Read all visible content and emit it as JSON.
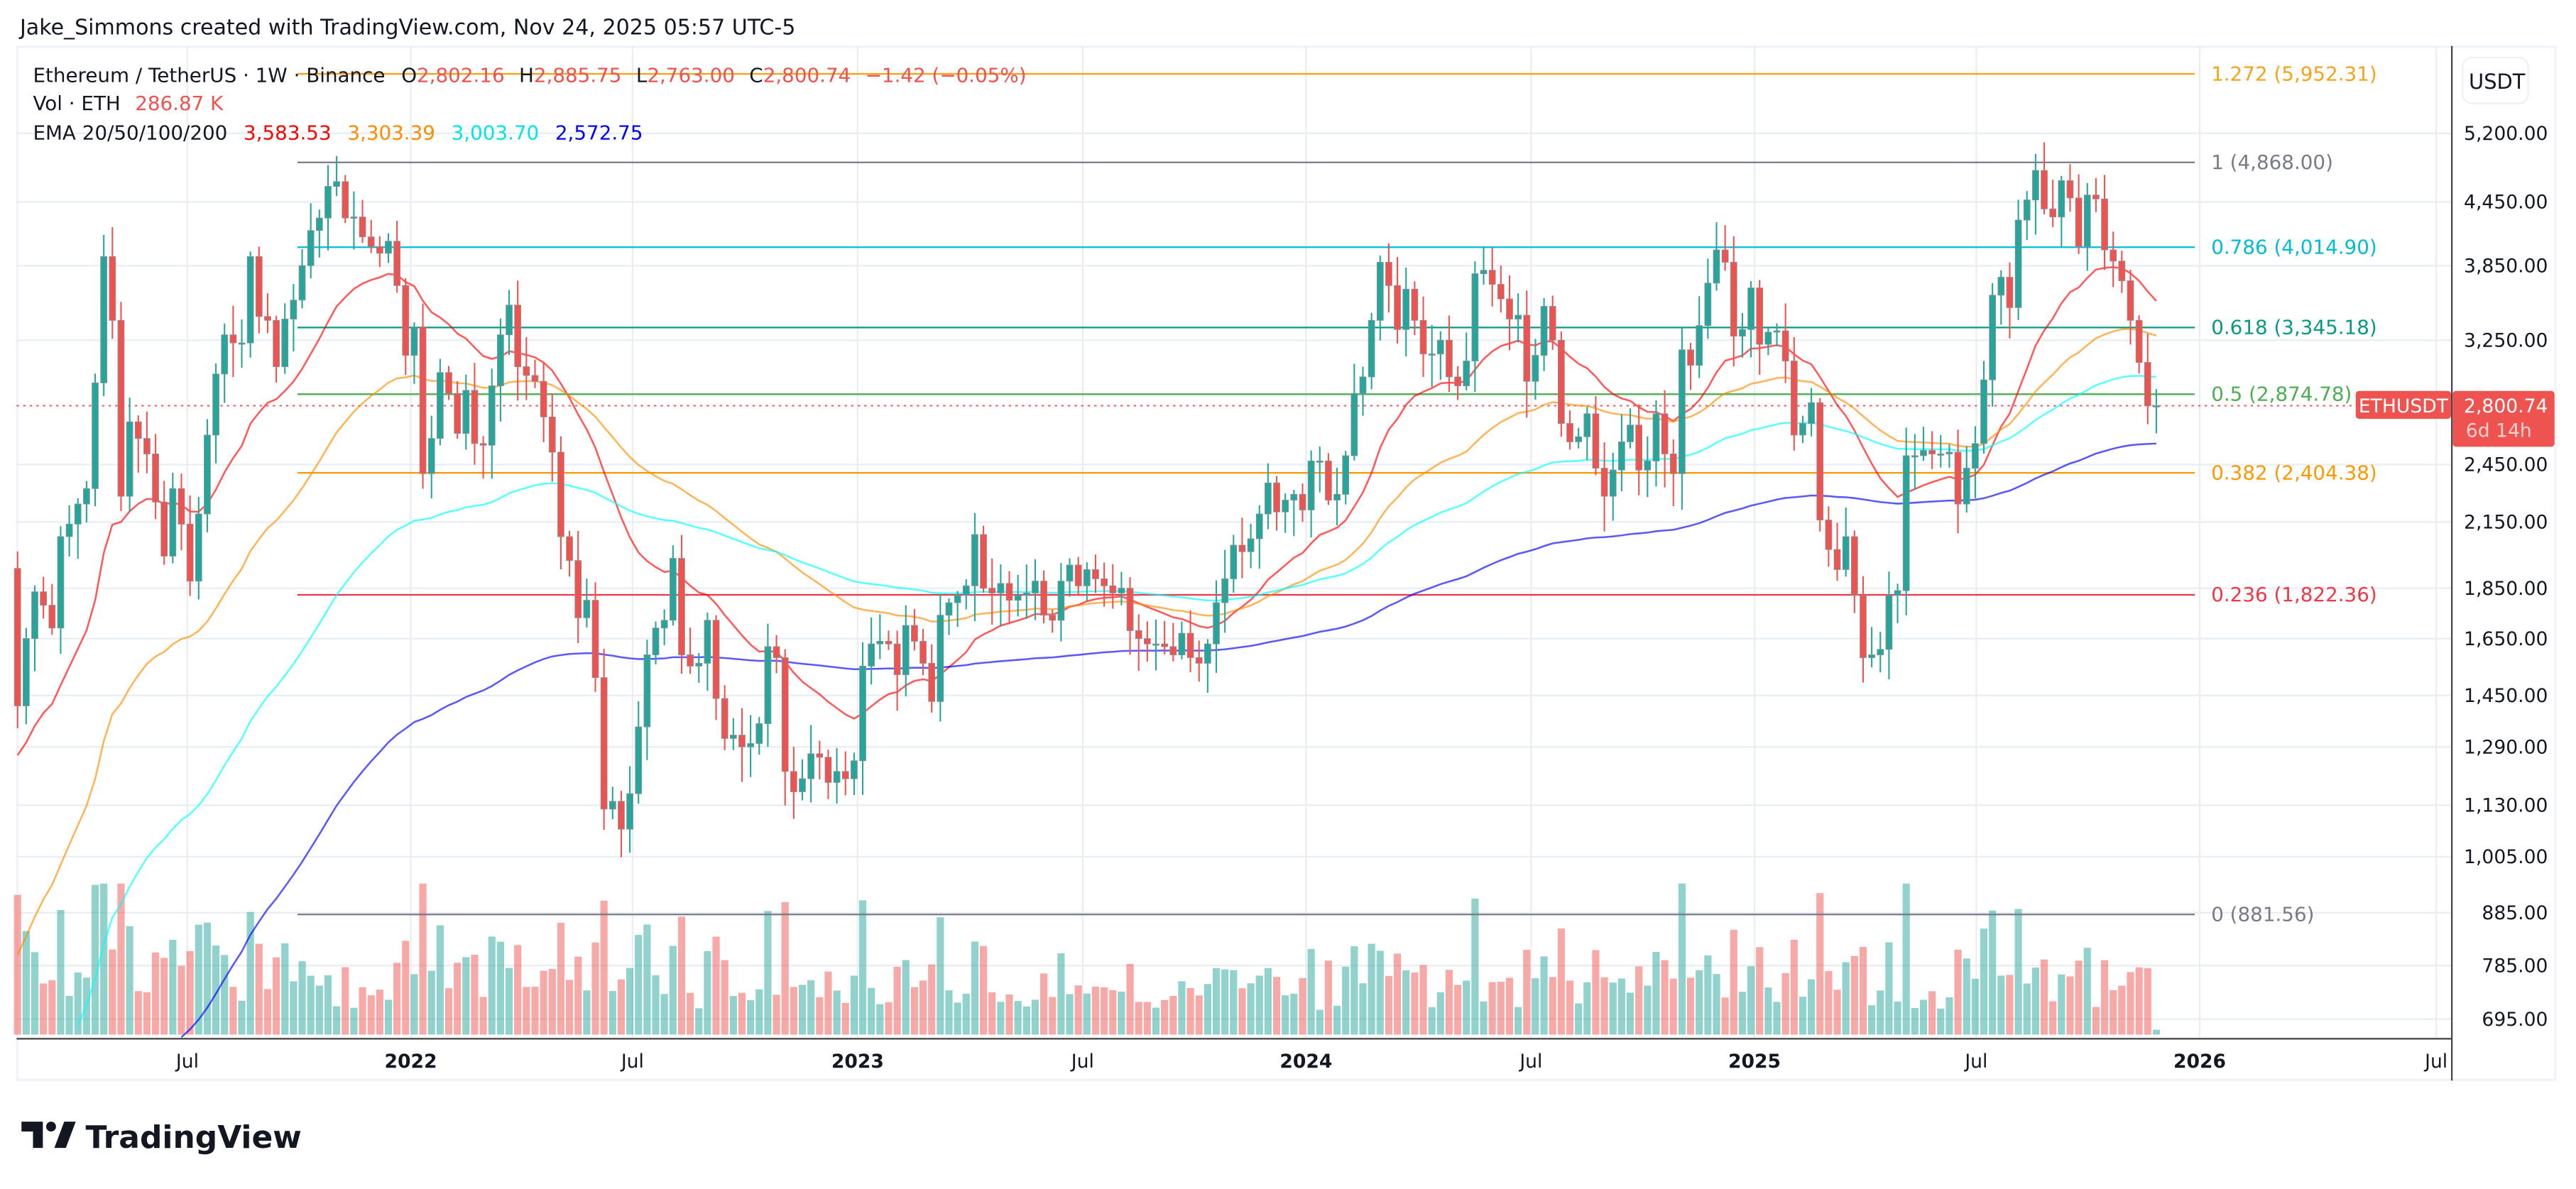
{
  "header": {
    "attribution": "Jake_Simmons created with TradingView.com, Nov 24, 2025 05:57 UTC-5"
  },
  "legend": {
    "symbol": "Ethereum / TetherUS · 1W · Binance",
    "open_label": "O",
    "open": "2,802.16",
    "high_label": "H",
    "high": "2,885.75",
    "low_label": "L",
    "low": "2,763.00",
    "close_label": "C",
    "close": "2,800.74",
    "change": "−1.42 (−0.05%)",
    "vol_label": "Vol · ETH",
    "vol": "286.87 K",
    "ema_label": "EMA 20/50/100/200",
    "ema_values": [
      "3,583.53",
      "3,303.39",
      "3,003.70",
      "2,572.75"
    ]
  },
  "colors": {
    "up": "#26a69a",
    "down": "#ef5350",
    "ema20": "#ff0000",
    "ema50": "#ff8c00",
    "ema100": "#00ffff",
    "ema200": "#0000ff"
  },
  "price_axis": {
    "currency": "USDT",
    "scale": "log",
    "ticks": [
      "5,200.00",
      "4,450.00",
      "3,850.00",
      "3,250.00",
      "2,450.00",
      "2,150.00",
      "1,850.00",
      "1,650.00",
      "1,450.00",
      "1,290.00",
      "1,130.00",
      "1,005.00",
      "885.00",
      "785.00",
      "695.00"
    ]
  },
  "price_tag": {
    "symbol": "ETHUSDT",
    "price": "2,800.74",
    "countdown": "6d 14h"
  },
  "time_axis": {
    "ticks": [
      "Jul",
      "2022",
      "Jul",
      "2023",
      "Jul",
      "2024",
      "Jul",
      "2025",
      "Jul",
      "2026",
      "Jul"
    ]
  },
  "fib_levels": [
    {
      "label": "1.272 (5,952.31)",
      "price": 5952.31,
      "color": "#f7a21b"
    },
    {
      "label": "1 (4,868.00)",
      "price": 4868.0,
      "color": "#787b86"
    },
    {
      "label": "0.786 (4,014.90)",
      "price": 4014.9,
      "color": "#00bcd4"
    },
    {
      "label": "0.618 (3,345.18)",
      "price": 3345.18,
      "color": "#089981"
    },
    {
      "label": "0.5 (2,874.78)",
      "price": 2874.78,
      "color": "#4caf50"
    },
    {
      "label": "0.382 (2,404.38)",
      "price": 2404.38,
      "color": "#ff9800"
    },
    {
      "label": "0.236 (1,822.36)",
      "price": 1822.36,
      "color": "#f23645"
    },
    {
      "label": "0 (881.56)",
      "price": 881.56,
      "color": "#787b86"
    }
  ],
  "chart_data": {
    "type": "candlestick",
    "interval": "1W",
    "first_candle_date": "2021-02-22",
    "first_open": 1935,
    "y_scale": "log",
    "ylim": [
      680,
      6100
    ],
    "weekly_close": [
      1416,
      1650,
      1835,
      1780,
      1690,
      2080,
      2140,
      2240,
      2320,
      2950,
      3930,
      3400,
      2280,
      2700,
      2600,
      2510,
      2250,
      1990,
      2320,
      2140,
      1880,
      2190,
      2620,
      3010,
      3290,
      3230,
      3230,
      3930,
      3430,
      3400,
      3060,
      3410,
      3560,
      3850,
      4170,
      4290,
      4610,
      4660,
      4290,
      4300,
      4110,
      4020,
      3960,
      4070,
      3680,
      3140,
      3350,
      2400,
      2600,
      3020,
      2880,
      2630,
      2900,
      2570,
      2560,
      2930,
      3290,
      3520,
      3060,
      3000,
      2960,
      2730,
      2520,
      2080,
      1970,
      1730,
      1800,
      1510,
      1120,
      1140,
      1070,
      1160,
      1350,
      1590,
      1690,
      1720,
      1980,
      1590,
      1550,
      1560,
      1720,
      1440,
      1315,
      1325,
      1290,
      1300,
      1360,
      1620,
      1580,
      1220,
      1165,
      1200,
      1270,
      1260,
      1190,
      1220,
      1200,
      1250,
      1550,
      1630,
      1640,
      1630,
      1520,
      1700,
      1640,
      1560,
      1430,
      1740,
      1790,
      1820,
      1860,
      2090,
      1850,
      1830,
      1870,
      1800,
      1820,
      1830,
      1880,
      1740,
      1720,
      1880,
      1950,
      1860,
      1930,
      1890,
      1860,
      1830,
      1850,
      1680,
      1650,
      1630,
      1630,
      1620,
      1590,
      1670,
      1580,
      1560,
      1630,
      1790,
      1890,
      2040,
      2010,
      2070,
      2190,
      2350,
      2200,
      2260,
      2290,
      2210,
      2470,
      2470,
      2260,
      2290,
      2500,
      2880,
      2990,
      3400,
      3880,
      3680,
      3330,
      3650,
      3400,
      3150,
      3150,
      3250,
      2990,
      2930,
      3100,
      3780,
      3810,
      3690,
      3570,
      3410,
      3440,
      2960,
      3140,
      3510,
      3250,
      2690,
      2580,
      2610,
      2750,
      2430,
      2280,
      2420,
      2580,
      2680,
      2420,
      2470,
      2750,
      2510,
      2400,
      3180,
      3070,
      3360,
      3700,
      3990,
      3880,
      3280,
      3330,
      3660,
      3220,
      3310,
      3320,
      3100,
      2620,
      2690,
      2820,
      2160,
      2020,
      1930,
      2080,
      1820,
      1580,
      1590,
      1610,
      1820,
      1840,
      2500,
      2500,
      2530,
      2510,
      2510,
      2520,
      2240,
      2430,
      2570,
      2970,
      3600,
      3750,
      3500,
      4270,
      4470,
      4780,
      4380,
      4300,
      4670,
      4490,
      4020,
      4520,
      4480,
      3990,
      3890,
      3720,
      3400,
      3090,
      2800,
      2800.74
    ],
    "ema_periods": [
      20,
      50,
      100,
      200
    ],
    "grid": true,
    "legend_position": "top-left"
  }
}
